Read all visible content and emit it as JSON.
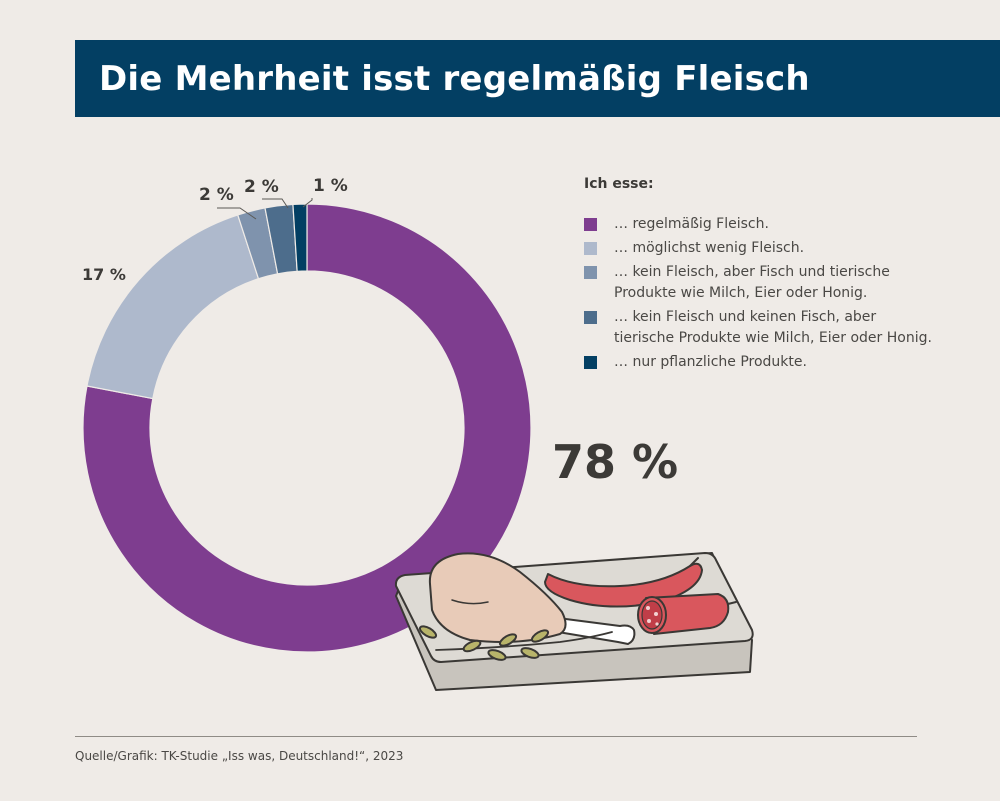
{
  "header": {
    "title": "Die Mehrheit isst regelmäßig Fleisch"
  },
  "chart_data": {
    "type": "pie",
    "donut": true,
    "title": "Die Mehrheit isst regelmäßig Fleisch",
    "legend_title": "Ich esse:",
    "legend_position": "right",
    "slices": [
      {
        "label": "… regelmäßig Fleisch.",
        "value": 78,
        "value_label": "78 %",
        "color": "#7e3d8f"
      },
      {
        "label": "… möglichst wenig Fleisch.",
        "value": 17,
        "value_label": "17 %",
        "color": "#aeb9cc"
      },
      {
        "label": "… kein Fleisch, aber Fisch und tierische Produkte wie Milch, Eier oder Honig.",
        "value": 2,
        "value_label": "2 %",
        "color": "#7f93ad"
      },
      {
        "label": "… kein Fleisch und keinen Fisch, aber tierische Produkte wie Milch, Eier oder Honig.",
        "value": 2,
        "value_label": "2 %",
        "color": "#4d6d8c"
      },
      {
        "label": "… nur pflanzliche Produkte.",
        "value": 1,
        "value_label": "1 %",
        "color": "#033f63"
      }
    ]
  },
  "footer": {
    "source": "Quelle/Grafik: TK-Studie „Iss was, Deutschland!“, 2023"
  },
  "illustration": {
    "name": "meat-board-illustration"
  }
}
